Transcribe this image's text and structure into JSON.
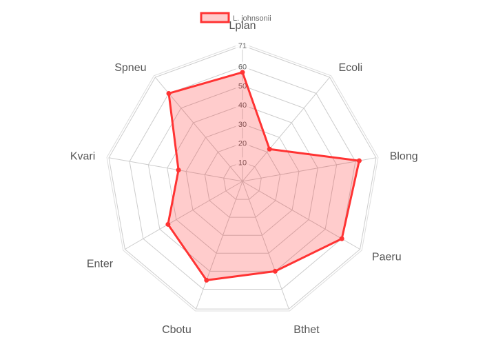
{
  "chart_data": {
    "type": "radar",
    "categories": [
      "Lplan",
      "Ecoli",
      "Blong",
      "Paeru",
      "Bthet",
      "Cbotu",
      "Enter",
      "Kvari",
      "Spneu"
    ],
    "series": [
      {
        "name": "L. johnsonii",
        "values": [
          57,
          22,
          62,
          60,
          50,
          55,
          45,
          34,
          60
        ]
      }
    ],
    "radial_ticks": [
      10,
      20,
      30,
      40,
      50,
      60
    ],
    "radial_max": 71,
    "legend": "top",
    "grid": true,
    "colors": {
      "line": "#ff3333",
      "fill": "rgba(255,0,0,0.2)",
      "grid": "#cccccc"
    }
  }
}
